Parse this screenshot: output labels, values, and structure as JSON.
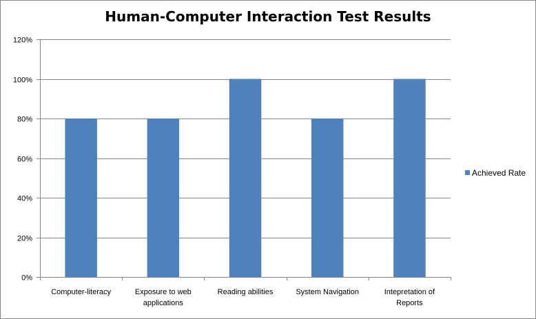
{
  "chart_data": {
    "type": "bar",
    "title": "Human-Computer Interaction Test Results",
    "categories": [
      [
        "Computer-literacy"
      ],
      [
        "Exposure to web",
        "applications"
      ],
      [
        "Reading abilities"
      ],
      [
        "System Navigation"
      ],
      [
        "Intepretation of",
        "Reports"
      ]
    ],
    "series": [
      {
        "name": "Achieved Rate",
        "values": [
          80,
          80,
          100,
          80,
          100
        ],
        "color": "#4F81BD"
      }
    ],
    "ylim": [
      0,
      120
    ],
    "ytick_labels": [
      "0%",
      "20%",
      "40%",
      "60%",
      "80%",
      "100%",
      "120%"
    ],
    "grid": true,
    "legend_position": "right"
  }
}
